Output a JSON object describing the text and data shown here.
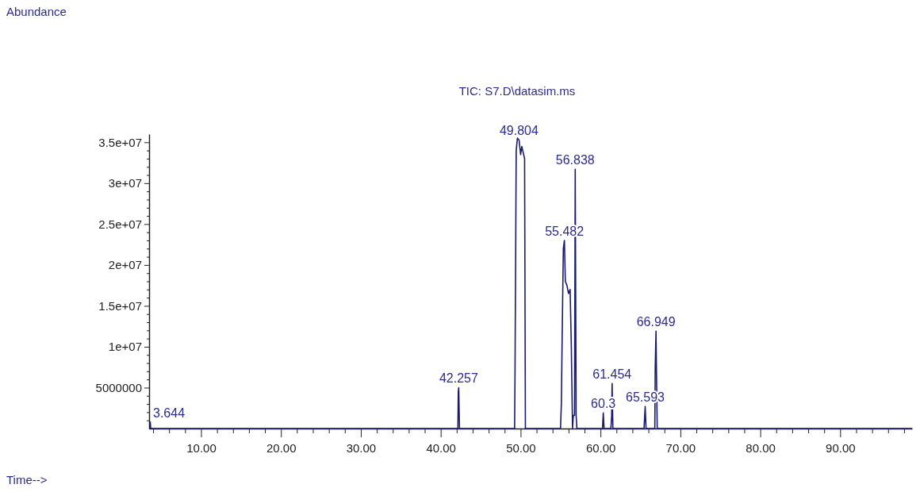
{
  "chart_data": {
    "type": "line",
    "title": "TIC: S7.D\\datasim.ms",
    "xlabel": "Time-->",
    "x": [
      3.5,
      3.6,
      3.644,
      3.7,
      42.15,
      42.2,
      42.257,
      42.35,
      49.25,
      49.3,
      49.45,
      49.6,
      49.804,
      50.0,
      50.15,
      50.5,
      50.6,
      55.0,
      55.1,
      55.2,
      55.35,
      55.482,
      55.6,
      55.8,
      56.0,
      56.2,
      56.35,
      56.5,
      56.6,
      56.75,
      56.838,
      56.95,
      57.05,
      60.25,
      60.35,
      60.45,
      61.3,
      61.4,
      61.454,
      61.55,
      65.45,
      65.593,
      65.7,
      66.8,
      66.85,
      66.949,
      67.0,
      67.1,
      99
    ],
    "series": [
      {
        "color": "#1a1a6e",
        "values": [
          0,
          0,
          800000,
          0,
          0,
          4500000,
          5000000,
          0,
          0,
          6500000,
          34000000,
          35500000,
          35300000,
          33500000,
          34500000,
          33000000,
          0,
          0,
          3000000,
          11000000,
          22000000,
          23000000,
          18000000,
          17500000,
          16500000,
          17000000,
          10000000,
          0,
          1600000,
          1600000,
          31700000,
          1600000,
          0,
          0,
          1900000,
          0,
          0,
          1500000,
          5500000,
          0,
          0,
          2700000,
          0,
          0,
          7500000,
          11900000,
          7500000,
          0,
          0
        ]
      }
    ],
    "xlim": [
      3.5,
      99
    ],
    "ylim": [
      0,
      36000000
    ],
    "xticks": [
      {
        "value": 4,
        "label": null
      },
      {
        "value": 6,
        "label": null
      },
      {
        "value": 8,
        "label": null
      },
      {
        "value": 10,
        "label": "10.00"
      },
      {
        "value": 12,
        "label": null
      },
      {
        "value": 14,
        "label": null
      },
      {
        "value": 16,
        "label": null
      },
      {
        "value": 18,
        "label": null
      },
      {
        "value": 20,
        "label": "20.00"
      },
      {
        "value": 22,
        "label": null
      },
      {
        "value": 24,
        "label": null
      },
      {
        "value": 26,
        "label": null
      },
      {
        "value": 28,
        "label": null
      },
      {
        "value": 30,
        "label": "30.00"
      },
      {
        "value": 32,
        "label": null
      },
      {
        "value": 34,
        "label": null
      },
      {
        "value": 36,
        "label": null
      },
      {
        "value": 38,
        "label": null
      },
      {
        "value": 40,
        "label": "40.00"
      },
      {
        "value": 42,
        "label": null
      },
      {
        "value": 44,
        "label": null
      },
      {
        "value": 46,
        "label": null
      },
      {
        "value": 48,
        "label": null
      },
      {
        "value": 50,
        "label": "50.00"
      },
      {
        "value": 52,
        "label": null
      },
      {
        "value": 54,
        "label": null
      },
      {
        "value": 56,
        "label": null
      },
      {
        "value": 58,
        "label": null
      },
      {
        "value": 60,
        "label": "60.00"
      },
      {
        "value": 62,
        "label": null
      },
      {
        "value": 64,
        "label": null
      },
      {
        "value": 66,
        "label": null
      },
      {
        "value": 68,
        "label": null
      },
      {
        "value": 70,
        "label": "70.00"
      },
      {
        "value": 72,
        "label": null
      },
      {
        "value": 74,
        "label": null
      },
      {
        "value": 76,
        "label": null
      },
      {
        "value": 78,
        "label": null
      },
      {
        "value": 80,
        "label": "80.00"
      },
      {
        "value": 82,
        "label": null
      },
      {
        "value": 84,
        "label": null
      },
      {
        "value": 86,
        "label": null
      },
      {
        "value": 88,
        "label": null
      },
      {
        "value": 90,
        "label": "90.00"
      },
      {
        "value": 92,
        "label": null
      },
      {
        "value": 94,
        "label": null
      },
      {
        "value": 96,
        "label": null
      },
      {
        "value": 98,
        "label": null
      }
    ],
    "yticks": [
      {
        "value": 1000000,
        "label": null
      },
      {
        "value": 2000000,
        "label": null
      },
      {
        "value": 3000000,
        "label": null
      },
      {
        "value": 4000000,
        "label": null
      },
      5000000,
      {
        "value": 6000000,
        "label": null
      },
      {
        "value": 7000000,
        "label": null
      },
      {
        "value": 8000000,
        "label": null
      },
      {
        "value": 9000000,
        "label": null
      },
      {
        "value": 10000000,
        "label": "1e+07"
      },
      {
        "value": 11000000,
        "label": null
      },
      {
        "value": 12000000,
        "label": null
      },
      {
        "value": 13000000,
        "label": null
      },
      {
        "value": 14000000,
        "label": null
      },
      {
        "value": 15000000,
        "label": "1.5e+07"
      },
      {
        "value": 16000000,
        "label": null
      },
      {
        "value": 17000000,
        "label": null
      },
      {
        "value": 18000000,
        "label": null
      },
      {
        "value": 19000000,
        "label": null
      },
      {
        "value": 20000000,
        "label": "2e+07"
      },
      {
        "value": 21000000,
        "label": null
      },
      {
        "value": 22000000,
        "label": null
      },
      {
        "value": 23000000,
        "label": null
      },
      {
        "value": 24000000,
        "label": null
      },
      {
        "value": 25000000,
        "label": "2.5e+07"
      },
      {
        "value": 26000000,
        "label": null
      },
      {
        "value": 27000000,
        "label": null
      },
      {
        "value": 28000000,
        "label": null
      },
      {
        "value": 29000000,
        "label": null
      },
      {
        "value": 30000000,
        "label": "3e+07"
      },
      {
        "value": 31000000,
        "label": null
      },
      {
        "value": 32000000,
        "label": null
      },
      {
        "value": 33000000,
        "label": null
      },
      {
        "value": 34000000,
        "label": null
      },
      {
        "value": 35000000,
        "label": "3.5e+07"
      }
    ],
    "annotations": [
      "Abundance",
      {
        "text": "3.644",
        "x": 3.644,
        "y": 800000
      },
      {
        "text": "42.257",
        "x": 42.257,
        "y": 5000000
      },
      {
        "text": "49.804",
        "x": 49.804,
        "y": 35300000
      },
      {
        "text": "55.482",
        "x": 55.482,
        "y": 23000000
      },
      {
        "text": "56.838",
        "x": 56.838,
        "y": 31700000
      },
      {
        "text": "60.3",
        "x": 60.35,
        "y": 1900000
      },
      {
        "text": "61.454",
        "x": 61.454,
        "y": 5500000
      },
      {
        "text": "65.593",
        "x": 65.593,
        "y": 2700000
      },
      {
        "text": "66.949",
        "x": 66.949,
        "y": 11900000
      }
    ],
    "grid": false,
    "line_style": "solid",
    "marker": "none"
  }
}
